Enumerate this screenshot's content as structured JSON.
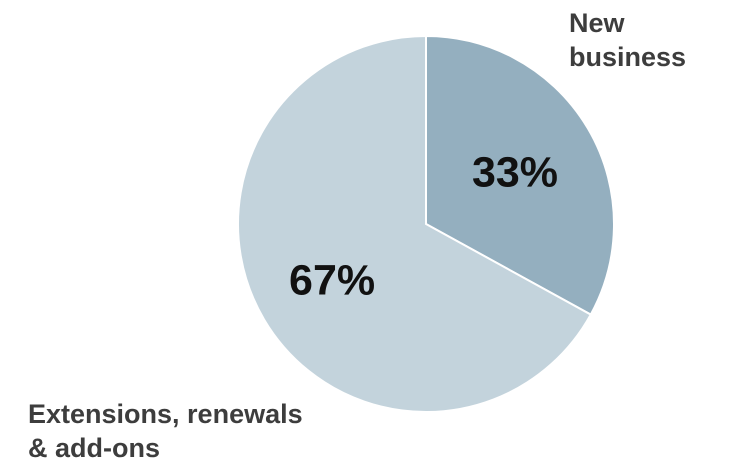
{
  "chart_data": {
    "type": "pie",
    "slices": [
      {
        "label_lines": [
          "New",
          "business"
        ],
        "value": 33,
        "value_label": "33%",
        "color": "#94afbf"
      },
      {
        "label_lines": [
          "Extensions, renewals",
          "& add-ons"
        ],
        "value": 67,
        "value_label": "67%",
        "color": "#c3d3dc"
      }
    ],
    "start_angle": "12 o'clock",
    "direction": "clockwise",
    "slice_separator_color": "#ffffff"
  }
}
